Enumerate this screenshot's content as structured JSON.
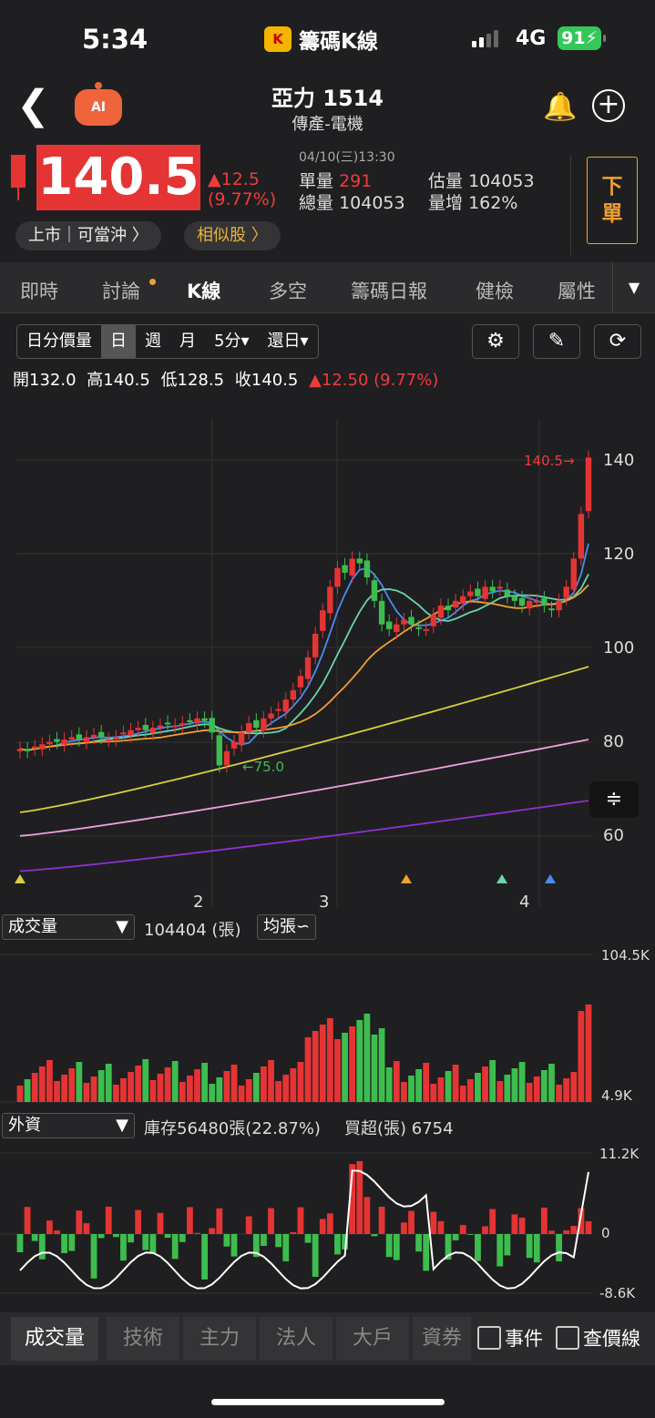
{
  "status_bar": {
    "time": "5:34",
    "app_name": "籌碼K線",
    "network": "4G",
    "battery": "91"
  },
  "header": {
    "stock_title": "亞力 1514",
    "sector": "傳產-電機",
    "ai_label": "AI"
  },
  "quote": {
    "price": "140.5",
    "change": "▲12.5",
    "change_pct": "(9.77%)",
    "timestamp": "04/10(三)13:30",
    "single_vol_label": "單量",
    "single_vol": "291",
    "total_vol_label": "總量",
    "total_vol": "104053",
    "est_vol_label": "估量",
    "est_vol": "104053",
    "vol_inc_label": "量增",
    "vol_inc": "162%",
    "sell_label_1": "下",
    "sell_label_2": "單",
    "tag_market": "上市｜可當沖 〉",
    "tag_similar": "相似股 〉"
  },
  "tabs": [
    "即時",
    "討論",
    "K線",
    "多空",
    "籌碼日報",
    "健檢",
    "屬性"
  ],
  "active_tab": "K線",
  "periods": [
    "日分價量",
    "日",
    "週",
    "月",
    "5分▾",
    "還日▾"
  ],
  "active_period": "日",
  "ohlc": {
    "open": "開132.0",
    "high": "高140.5",
    "low": "低128.5",
    "close": "收140.5",
    "change": "▲12.50 (9.77%)"
  },
  "price_chart": {
    "y_ticks": [
      "140",
      "120",
      "100",
      "80",
      "60"
    ],
    "x_ticks": [
      "2",
      "3",
      "4"
    ],
    "high_marker": "140.5→",
    "low_marker": "←75.0",
    "colors": {
      "up": "#e53434",
      "down": "#3dbd4e",
      "ma5": "#4a8cf0",
      "ma10": "#6ad5b0",
      "ma20": "#f0a030",
      "ma60": "#d8d040",
      "ma120": "#f0a0e0",
      "ma240": "#9030d0"
    }
  },
  "volume_panel": {
    "select": "成交量",
    "value": "104404 (張)",
    "avg_select": "均張∽",
    "max_label": "104.5K",
    "min_label": "4.9K"
  },
  "foreign_panel": {
    "select": "外資",
    "holding": "庫存56480張(22.87%)",
    "net": "買超(張) 6754",
    "max_label": "11.2K",
    "zero_label": "0",
    "min_label": "-8.6K"
  },
  "bottom_tabs": [
    "成交量",
    "技術",
    "主力",
    "法人",
    "大戶",
    "資券"
  ],
  "active_bottom_tab": "成交量",
  "checks": [
    "事件",
    "查價線"
  ]
}
